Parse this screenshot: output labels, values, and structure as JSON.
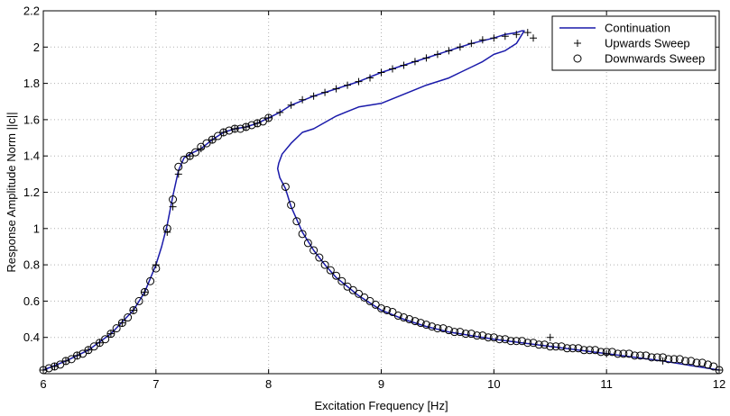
{
  "chart_data": {
    "type": "line",
    "title": "",
    "xlabel": "Excitation Frequency [Hz]",
    "ylabel": "Response Amplitude Norm ||c||",
    "xlim": [
      6,
      12
    ],
    "ylim": [
      0.2,
      2.2
    ],
    "grid": true,
    "legend_position": "top-right",
    "x_ticks": [
      6,
      7,
      8,
      9,
      10,
      11,
      12
    ],
    "x_tick_labels": [
      "6",
      "7",
      "8",
      "9",
      "10",
      "11",
      "12"
    ],
    "y_ticks": [
      0.4,
      0.6,
      0.8,
      1.0,
      1.2,
      1.4,
      1.6,
      1.8,
      2.0,
      2.2
    ],
    "y_tick_labels": [
      "0.4",
      "0.6",
      "0.8",
      "1",
      "1.2",
      "1.4",
      "1.6",
      "1.8",
      "2",
      "2.2"
    ],
    "colors": {
      "continuation": "#1a1aaa",
      "markers": "#000000",
      "grid": "#b0b0b0"
    },
    "series": [
      {
        "name": "Continuation",
        "style": "line",
        "x": [
          6.0,
          6.2,
          6.4,
          6.6,
          6.8,
          6.9,
          7.0,
          7.05,
          7.1,
          7.15,
          7.2,
          7.25,
          7.3,
          7.4,
          7.5,
          7.6,
          7.7,
          7.8,
          7.9,
          8.0,
          8.1,
          8.2,
          8.4,
          8.6,
          8.8,
          9.0,
          9.2,
          9.4,
          9.6,
          9.8,
          10.0,
          10.1,
          10.2,
          10.25,
          10.27,
          10.2,
          10.1,
          10.0,
          9.9,
          9.8,
          9.7,
          9.6,
          9.4,
          9.2,
          9.0,
          8.8,
          8.6,
          8.4,
          8.3,
          8.2,
          8.12,
          8.09,
          8.08,
          8.1,
          8.15,
          8.2,
          8.3,
          8.4,
          8.5,
          8.6,
          8.8,
          9.0,
          9.2,
          9.4,
          9.6,
          9.8,
          10.0,
          10.5,
          11.0,
          11.5,
          12.0
        ],
        "y": [
          0.22,
          0.27,
          0.33,
          0.42,
          0.55,
          0.65,
          0.8,
          0.9,
          1.02,
          1.18,
          1.32,
          1.39,
          1.41,
          1.44,
          1.49,
          1.53,
          1.55,
          1.56,
          1.58,
          1.61,
          1.64,
          1.68,
          1.73,
          1.77,
          1.81,
          1.86,
          1.9,
          1.94,
          1.98,
          2.02,
          2.05,
          2.07,
          2.08,
          2.09,
          2.09,
          2.02,
          1.98,
          1.96,
          1.92,
          1.89,
          1.86,
          1.83,
          1.79,
          1.74,
          1.69,
          1.67,
          1.62,
          1.55,
          1.53,
          1.47,
          1.41,
          1.36,
          1.33,
          1.28,
          1.22,
          1.12,
          0.98,
          0.88,
          0.8,
          0.73,
          0.63,
          0.55,
          0.5,
          0.46,
          0.43,
          0.41,
          0.39,
          0.35,
          0.31,
          0.27,
          0.22
        ]
      },
      {
        "name": "Upwards Sweep",
        "style": "plus",
        "x": [
          6.0,
          6.1,
          6.2,
          6.3,
          6.4,
          6.5,
          6.6,
          6.7,
          6.8,
          6.9,
          7.0,
          7.1,
          7.15,
          7.2,
          7.3,
          7.4,
          7.5,
          7.6,
          7.7,
          7.8,
          7.9,
          8.0,
          8.1,
          8.2,
          8.3,
          8.4,
          8.5,
          8.6,
          8.7,
          8.8,
          8.9,
          9.0,
          9.1,
          9.2,
          9.3,
          9.4,
          9.5,
          9.6,
          9.7,
          9.8,
          9.9,
          10.0,
          10.1,
          10.2,
          10.3,
          10.35,
          10.5,
          11.0,
          11.5,
          12.0
        ],
        "y": [
          0.22,
          0.24,
          0.27,
          0.3,
          0.33,
          0.37,
          0.42,
          0.48,
          0.55,
          0.65,
          0.8,
          0.98,
          1.12,
          1.3,
          1.4,
          1.44,
          1.49,
          1.53,
          1.55,
          1.56,
          1.58,
          1.61,
          1.64,
          1.68,
          1.71,
          1.73,
          1.75,
          1.77,
          1.79,
          1.81,
          1.83,
          1.86,
          1.88,
          1.9,
          1.92,
          1.94,
          1.96,
          1.98,
          2.0,
          2.02,
          2.04,
          2.05,
          2.06,
          2.07,
          2.08,
          2.05,
          0.4,
          0.31,
          0.27,
          0.22
        ]
      },
      {
        "name": "Downwards Sweep",
        "style": "circle",
        "x": [
          6.0,
          6.05,
          6.1,
          6.15,
          6.2,
          6.25,
          6.3,
          6.35,
          6.4,
          6.45,
          6.5,
          6.55,
          6.6,
          6.65,
          6.7,
          6.75,
          6.8,
          6.85,
          6.9,
          6.95,
          7.0,
          7.1,
          7.15,
          7.2,
          7.25,
          7.3,
          7.35,
          7.4,
          7.45,
          7.5,
          7.55,
          7.6,
          7.65,
          7.7,
          7.75,
          7.8,
          7.85,
          7.9,
          7.95,
          8.0,
          8.15,
          8.2,
          8.25,
          8.3,
          8.35,
          8.4,
          8.45,
          8.5,
          8.55,
          8.6,
          8.65,
          8.7,
          8.75,
          8.8,
          8.85,
          8.9,
          8.95,
          9.0,
          9.05,
          9.1,
          9.15,
          9.2,
          9.25,
          9.3,
          9.35,
          9.4,
          9.45,
          9.5,
          9.55,
          9.6,
          9.65,
          9.7,
          9.75,
          9.8,
          9.85,
          9.9,
          9.95,
          10.0,
          10.05,
          10.1,
          10.15,
          10.2,
          10.25,
          10.3,
          10.35,
          10.4,
          10.45,
          10.5,
          10.55,
          10.6,
          10.65,
          10.7,
          10.75,
          10.8,
          10.85,
          10.9,
          10.95,
          11.0,
          11.05,
          11.1,
          11.15,
          11.2,
          11.25,
          11.3,
          11.35,
          11.4,
          11.45,
          11.5,
          11.55,
          11.6,
          11.65,
          11.7,
          11.75,
          11.8,
          11.85,
          11.9,
          11.95,
          12.0
        ],
        "y": [
          0.22,
          0.23,
          0.24,
          0.25,
          0.27,
          0.28,
          0.3,
          0.31,
          0.33,
          0.35,
          0.37,
          0.39,
          0.42,
          0.45,
          0.48,
          0.51,
          0.55,
          0.6,
          0.65,
          0.71,
          0.78,
          1.0,
          1.16,
          1.34,
          1.38,
          1.4,
          1.42,
          1.45,
          1.47,
          1.49,
          1.51,
          1.53,
          1.54,
          1.55,
          1.55,
          1.56,
          1.57,
          1.58,
          1.59,
          1.61,
          1.23,
          1.13,
          1.04,
          0.97,
          0.92,
          0.88,
          0.84,
          0.8,
          0.77,
          0.74,
          0.71,
          0.68,
          0.66,
          0.64,
          0.62,
          0.6,
          0.58,
          0.56,
          0.55,
          0.54,
          0.52,
          0.51,
          0.5,
          0.49,
          0.48,
          0.47,
          0.46,
          0.45,
          0.45,
          0.44,
          0.43,
          0.43,
          0.42,
          0.42,
          0.41,
          0.41,
          0.4,
          0.4,
          0.39,
          0.39,
          0.38,
          0.38,
          0.38,
          0.37,
          0.37,
          0.36,
          0.36,
          0.35,
          0.35,
          0.35,
          0.34,
          0.34,
          0.34,
          0.33,
          0.33,
          0.33,
          0.32,
          0.32,
          0.32,
          0.31,
          0.31,
          0.31,
          0.3,
          0.3,
          0.3,
          0.29,
          0.29,
          0.29,
          0.28,
          0.28,
          0.28,
          0.27,
          0.27,
          0.26,
          0.26,
          0.25,
          0.24,
          0.22
        ]
      }
    ]
  }
}
